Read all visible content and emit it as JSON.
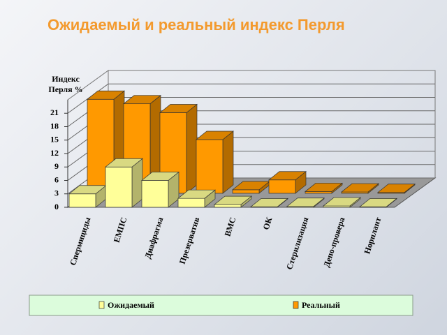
{
  "chart_data": {
    "type": "bar3d",
    "title": "Ожидаемый и реальный индекс Перля",
    "y_label": "Индекс Перля %",
    "categories": [
      "Спермициды",
      "ЕМПС",
      "Диафрагма",
      "Презерватив",
      "ВМС",
      "ОК",
      "Стерилизация",
      "Депо-провера",
      "Норплант"
    ],
    "series": [
      {
        "name": "Ожидаемый",
        "color": "#ffff99",
        "values": [
          3,
          9,
          6,
          2,
          0.6,
          0.1,
          0.2,
          0.3,
          0.1
        ]
      },
      {
        "name": "Реальный",
        "color": "#ff9900",
        "values": [
          21,
          20,
          18,
          12,
          0.8,
          3,
          0.4,
          0.3,
          0.2
        ]
      }
    ],
    "ylim": [
      0,
      24
    ],
    "yticks": [
      0,
      3,
      6,
      9,
      12,
      15,
      18,
      21
    ],
    "grid": true,
    "legend": "bottom"
  }
}
